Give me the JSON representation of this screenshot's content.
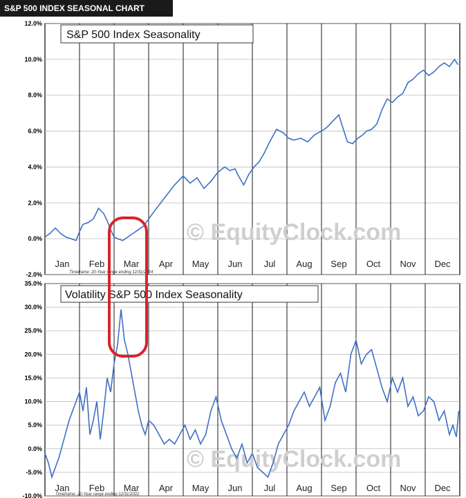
{
  "header": {
    "title": "S&P 500 INDEX SEASONAL CHART"
  },
  "colors": {
    "line": "#3d6fc4",
    "highlight": "#d8242a",
    "grid": "#000000",
    "watermark": "#c9c9c9"
  },
  "chart_data": [
    {
      "type": "line",
      "title": "S&P 500 Index Seasonality",
      "footnote": "Timeframe: 20-Year range ending 12/31/2024",
      "watermark": "© EquityClock.com",
      "x_ticks": [
        "Jan",
        "Feb",
        "Mar",
        "Apr",
        "May",
        "Jun",
        "Jul",
        "Aug",
        "Sep",
        "Oct",
        "Nov",
        "Dec"
      ],
      "y_ticks": [
        "12.0%",
        "10.0%",
        "8.0%",
        "6.0%",
        "4.0%",
        "2.0%",
        "0.0%",
        "-2.0%"
      ],
      "ylim": [
        -2,
        12
      ],
      "xlim": [
        0,
        12
      ],
      "series": [
        {
          "x": [
            0.0,
            0.15,
            0.3,
            0.45,
            0.6,
            0.75,
            0.9,
            1.0,
            1.1,
            1.25,
            1.4,
            1.55,
            1.7,
            1.8,
            1.9,
            2.0,
            2.1,
            2.25,
            2.4,
            2.55,
            2.7,
            2.85,
            3.0,
            3.15,
            3.35,
            3.55,
            3.75,
            3.9,
            4.0,
            4.2,
            4.4,
            4.6,
            4.8,
            5.0,
            5.2,
            5.35,
            5.5,
            5.6,
            5.75,
            5.9,
            6.05,
            6.2,
            6.35,
            6.5,
            6.7,
            6.9,
            7.05,
            7.2,
            7.4,
            7.6,
            7.8,
            8.0,
            8.15,
            8.3,
            8.5,
            8.65,
            8.75,
            8.9,
            9.05,
            9.2,
            9.3,
            9.45,
            9.6,
            9.75,
            9.9,
            10.05,
            10.2,
            10.35,
            10.5,
            10.65,
            10.8,
            10.95,
            11.1,
            11.25,
            11.4,
            11.55,
            11.7,
            11.85,
            11.95
          ],
          "y": [
            0.1,
            0.3,
            0.6,
            0.3,
            0.1,
            0.0,
            -0.1,
            0.4,
            0.8,
            0.9,
            1.1,
            1.7,
            1.4,
            1.0,
            0.5,
            0.1,
            0.0,
            -0.1,
            0.1,
            0.3,
            0.5,
            0.7,
            1.1,
            1.5,
            2.0,
            2.5,
            3.0,
            3.3,
            3.5,
            3.1,
            3.4,
            2.8,
            3.2,
            3.7,
            4.0,
            3.8,
            3.9,
            3.5,
            3.0,
            3.6,
            4.0,
            4.3,
            4.8,
            5.4,
            6.1,
            5.9,
            5.6,
            5.5,
            5.6,
            5.4,
            5.8,
            6.0,
            6.2,
            6.5,
            6.9,
            6.0,
            5.4,
            5.3,
            5.6,
            5.8,
            6.0,
            6.1,
            6.4,
            7.2,
            7.8,
            7.6,
            7.9,
            8.1,
            8.7,
            8.9,
            9.2,
            9.4,
            9.1,
            9.3,
            9.6,
            9.8,
            9.6,
            10.0,
            9.7
          ]
        }
      ]
    },
    {
      "type": "line",
      "title": "Volatility S&P 500 Index Seasonality",
      "footnote": "Timeframe: 20-Year range ending 12/31/2022",
      "watermark": "© EquityClock.com",
      "x_ticks": [
        "Jan",
        "Feb",
        "Mar",
        "Apr",
        "May",
        "Jun",
        "Jul",
        "Aug",
        "Sep",
        "Oct",
        "Nov",
        "Dec"
      ],
      "y_ticks": [
        "35.0%",
        "30.0%",
        "25.0%",
        "20.0%",
        "15.0%",
        "10.0%",
        "5.0%",
        "0.0%",
        "-5.0%",
        "-10.0%"
      ],
      "ylim": [
        -10,
        35
      ],
      "xlim": [
        0,
        12
      ],
      "series": [
        {
          "x": [
            0.0,
            0.1,
            0.2,
            0.3,
            0.4,
            0.55,
            0.7,
            0.85,
            1.0,
            1.1,
            1.2,
            1.3,
            1.4,
            1.5,
            1.6,
            1.7,
            1.8,
            1.9,
            2.0,
            2.1,
            2.2,
            2.3,
            2.4,
            2.5,
            2.6,
            2.7,
            2.8,
            2.9,
            3.0,
            3.15,
            3.3,
            3.45,
            3.6,
            3.75,
            3.9,
            4.05,
            4.2,
            4.35,
            4.5,
            4.65,
            4.8,
            4.95,
            5.1,
            5.25,
            5.4,
            5.55,
            5.7,
            5.85,
            6.0,
            6.15,
            6.3,
            6.45,
            6.6,
            6.75,
            6.9,
            7.05,
            7.2,
            7.35,
            7.5,
            7.65,
            7.8,
            7.95,
            8.1,
            8.25,
            8.4,
            8.55,
            8.7,
            8.85,
            9.0,
            9.15,
            9.3,
            9.45,
            9.6,
            9.75,
            9.9,
            10.05,
            10.2,
            10.35,
            10.5,
            10.65,
            10.8,
            10.95,
            11.1,
            11.25,
            11.4,
            11.55,
            11.7,
            11.8,
            11.9,
            11.97
          ],
          "y": [
            -1,
            -3,
            -6,
            -4,
            -2,
            2,
            6,
            9,
            12,
            8,
            13,
            3,
            6,
            10,
            2,
            8,
            15,
            12,
            18,
            22,
            29.5,
            23,
            20,
            16,
            12,
            8,
            5,
            3,
            6,
            5,
            3,
            1,
            2,
            1,
            3,
            5,
            2,
            4,
            1,
            3,
            8,
            11,
            6,
            3,
            0,
            -2,
            1,
            -3,
            -1,
            -4,
            -5,
            -6,
            -3,
            1,
            3,
            5,
            8,
            10,
            12,
            9,
            11,
            13,
            6,
            9,
            14,
            16,
            12,
            20,
            23,
            18,
            20,
            21,
            17,
            13,
            10,
            15,
            12,
            15,
            9,
            11,
            7,
            8,
            11,
            10,
            6,
            8,
            3,
            5,
            2.5,
            8
          ]
        }
      ]
    }
  ]
}
